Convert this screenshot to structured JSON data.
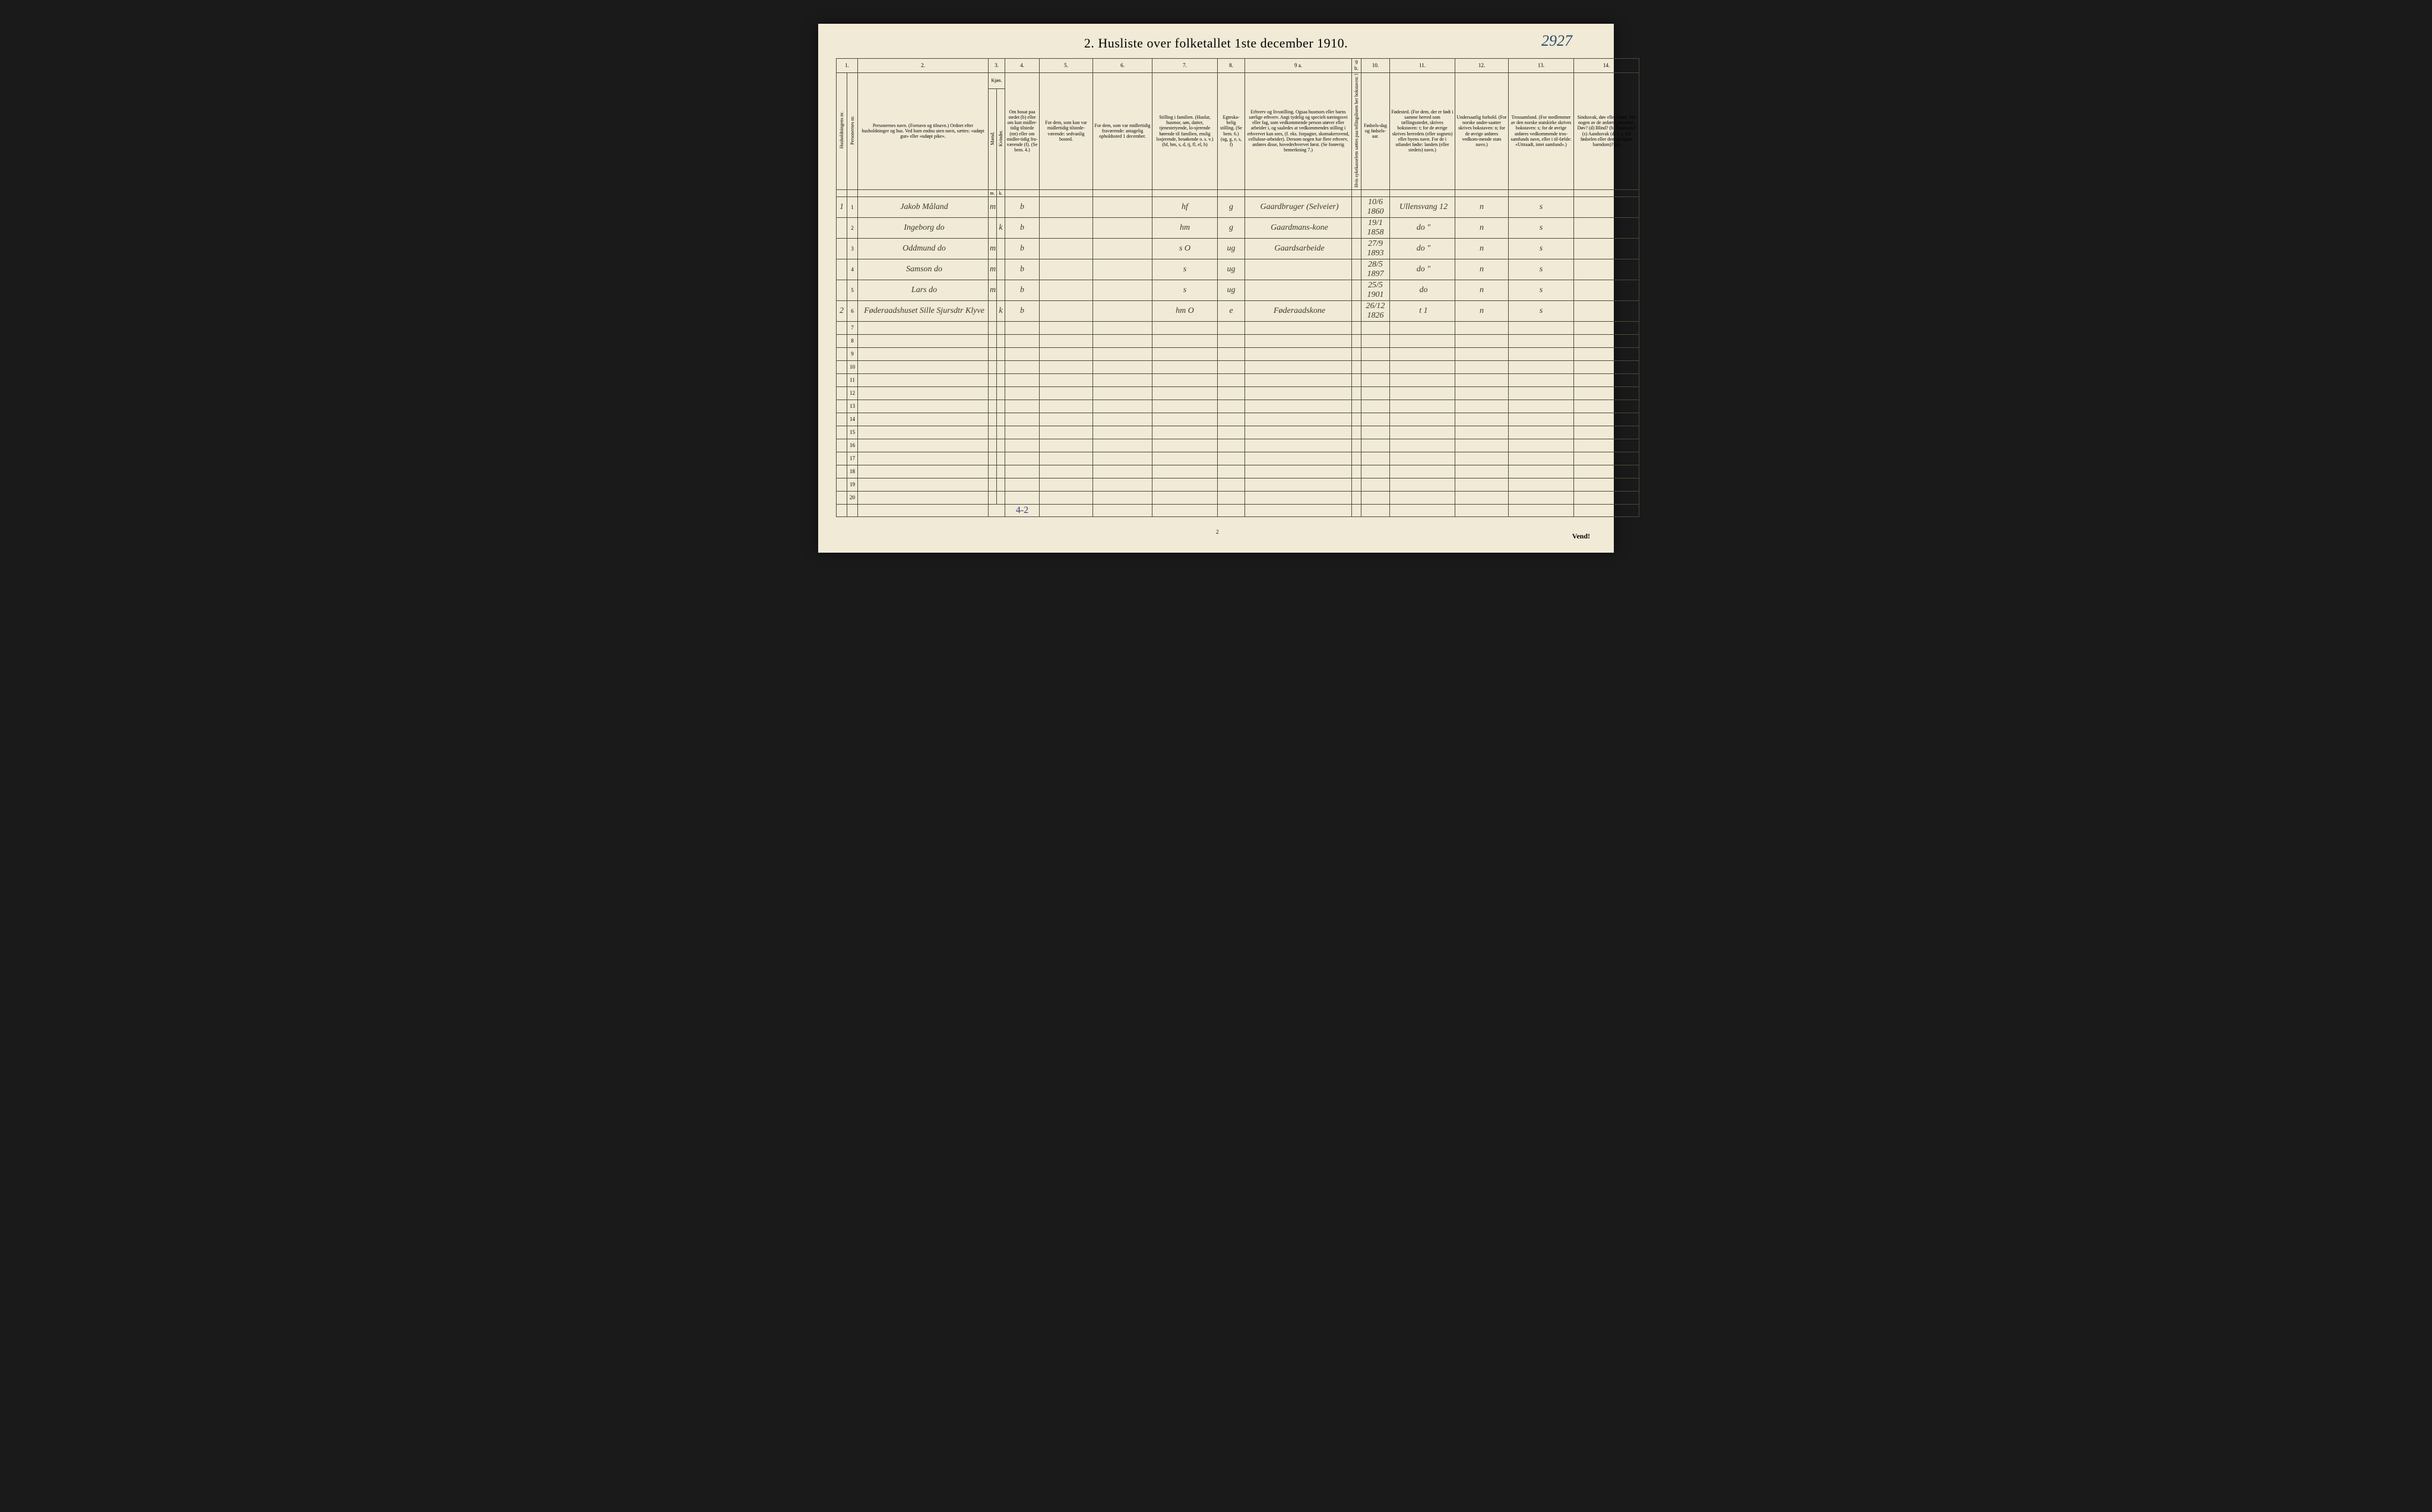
{
  "title": "2.  Husliste over folketallet 1ste december 1910.",
  "handwritten_number": "2927",
  "columns": {
    "num_labels": [
      "1.",
      "2.",
      "3.",
      "4.",
      "5.",
      "6.",
      "7.",
      "8.",
      "9 a.",
      "9 b.",
      "10.",
      "11.",
      "12.",
      "13.",
      "14."
    ],
    "h1": "Husholdningens nr.",
    "h2": "Personernes nr.",
    "h3": "Personernes navn.\n(Fornavn og tilnavn.)\nOrdnet efter husholdninger og hus.\nVed barn endnu uten navn, sættes: «udøpt gut» eller «udøpt pike».",
    "h4_top": "Kjøn.",
    "h4_m": "Mænd.",
    "h4_k": "Kvinder.",
    "h5": "Om bosat paa stedet (b) eller om kun midler-tidig tilstede (mt) eller om midler-tidig fra-værende (f). (Se bem. 4.)",
    "h6": "For dem, som kun var midlertidig tilstede-værende:\nsedvanlig bosted.",
    "h7": "For dem, som var midlertidig fraværende:\nantagelig opholdssted 1 december.",
    "h8": "Stilling i familien.\n(Husfar, husmor, søn, datter, tjenestetyende, lo-sjerende hørende til familien, enslig losjerende, besøkende o. s. v.)\n(hf, hm, s, d, tj, fl, el, b)",
    "h9": "Egteska-belig stilling.\n(Se bem. 6.)\n(ug, g, e, s, f)",
    "h10": "Erhverv og livsstilling.\nOgsaa husmors eller barns særlige erhverv. Angi tydelig og specielt næringsvei eller fag, som vedkommende person utøver eller arbeider i, og saaledes at vedkommendes stilling i erhvervet kan sees, (f. eks. forpagter, skomakersvend, cellulose-arbeider). Dersom nogen har flere erhverv, anføres disse, hovederhvervet først.\n(Se forøvrig bemerkning 7.)",
    "h11": "Hvis sykekasselem sættes paa tellingslisten her bokstaven: l",
    "h12": "Fødsels-dag og fødsels-aar.",
    "h13": "Fødested.\n(For dem, der er født i samme herred som tællingsstedet, skrives bokstaven: t; for de øvrige skrives herredets (eller sognets) eller byens navn. For de i utlandet fødte: landets (eller stedets) navn.)",
    "h14": "Undersaatlig forhold.\n(For norske under-saatter skrives bokstaven: n; for de øvrige anføres vedkom-mende stats navn.)",
    "h15": "Trossamfund.\n(For medlemmer av den norske statskirke skrives bokstaven: s; for de øvrige anføres vedkommende tros-samfunds navn, eller i til-fælde: «Uttraadt, intet samfund».)",
    "h16": "Sindssvak, døv eller blind.\nVar nogen av de anførte personer:\nDøv? (d)\nBlind? (b)\nSindssyk? (s)\nAandssvak (d. v. s. fra fødselen eller den tid-ligste barndom)? (a)"
  },
  "rows": [
    {
      "hh": "1",
      "pn": "1",
      "name": "Jakob Måland",
      "m": "m",
      "k": "",
      "b": "b",
      "col6": "",
      "col7": "",
      "col8": "hf",
      "col9": "g",
      "col10": "Gaardbruger (Selveier)",
      "col11": "",
      "col12": "10/6 1860",
      "col13": "Ullensvang 12",
      "col14": "n",
      "col15": "s",
      "col16": ""
    },
    {
      "hh": "",
      "pn": "2",
      "name": "Ingeborg     do",
      "m": "",
      "k": "k",
      "b": "b",
      "col6": "",
      "col7": "",
      "col8": "hm",
      "col9": "g",
      "col10": "Gaardmans-kone",
      "col11": "",
      "col12": "19/1 1858",
      "col13": "do  \"",
      "col14": "n",
      "col15": "s",
      "col16": ""
    },
    {
      "hh": "",
      "pn": "3",
      "name": "Oddmund     do",
      "m": "m",
      "k": "",
      "b": "b",
      "col6": "",
      "col7": "",
      "col8": "s   O",
      "col9": "ug",
      "col10": "Gaardsarbeide",
      "col11": "",
      "col12": "27/9 1893",
      "col13": "do  \"",
      "col14": "n",
      "col15": "s",
      "col16": ""
    },
    {
      "hh": "",
      "pn": "4",
      "name": "Samson      do",
      "m": "m",
      "k": "",
      "b": "b",
      "col6": "",
      "col7": "",
      "col8": "s",
      "col9": "ug",
      "col10": "",
      "col11": "",
      "col12": "28/5 1897",
      "col13": "do  \"",
      "col14": "n",
      "col15": "s",
      "col16": ""
    },
    {
      "hh": "",
      "pn": "5",
      "name": "Lars        do",
      "m": "m",
      "k": "",
      "b": "b",
      "col6": "",
      "col7": "",
      "col8": "s",
      "col9": "ug",
      "col10": "",
      "col11": "",
      "col12": "25/5 1901",
      "col13": "do",
      "col14": "n",
      "col15": "s",
      "col16": ""
    },
    {
      "hh": "2",
      "pn": "6",
      "name": "Føderaadshuset Sille Sjursdtr Klyve",
      "m": "",
      "k": "k",
      "b": "b",
      "col6": "",
      "col7": "",
      "col8": "hm  O",
      "col9": "e",
      "col10": "Føderaadskone",
      "col11": "",
      "col12": "26/12 1826",
      "col13": "t  1",
      "col14": "n",
      "col15": "s",
      "col16": ""
    }
  ],
  "empty_row_labels": [
    "7",
    "8",
    "9",
    "10",
    "11",
    "12",
    "13",
    "14",
    "15",
    "16",
    "17",
    "18",
    "19",
    "20"
  ],
  "footer_tally": "4-2",
  "page_number": "2",
  "vend": "Vend!",
  "col_widths": {
    "c1": 18,
    "c2": 18,
    "c_name": 220,
    "c_m": 14,
    "c_k": 14,
    "c5": 58,
    "c6": 90,
    "c7": 100,
    "c8": 110,
    "c9": 46,
    "c10": 180,
    "c11": 16,
    "c12": 48,
    "c13": 110,
    "c14": 90,
    "c15": 110,
    "c16": 110
  },
  "colors": {
    "paper": "#f0ead6",
    "ink": "#3a3a2a",
    "blue_ink": "#3a3a7a",
    "border": "#4a4a3a"
  }
}
